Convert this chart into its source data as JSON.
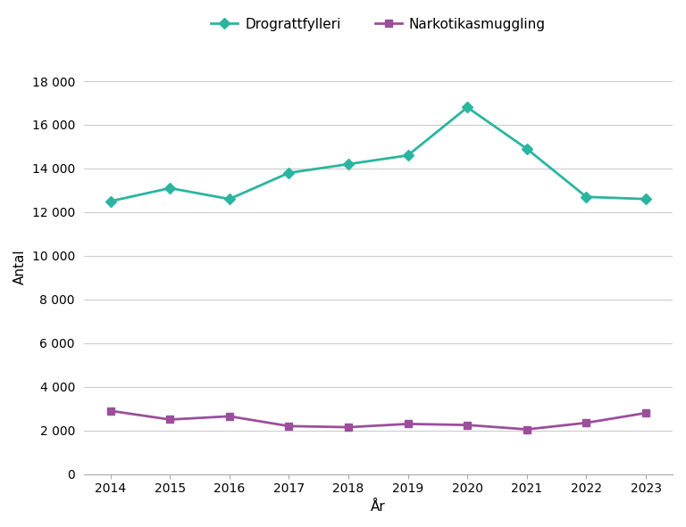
{
  "years": [
    2014,
    2015,
    2016,
    2017,
    2018,
    2019,
    2020,
    2021,
    2022,
    2023
  ],
  "drograttfylleri": [
    12500,
    13100,
    12600,
    13800,
    14200,
    14600,
    16800,
    14900,
    12700,
    12600
  ],
  "narkotikasmuggling": [
    2900,
    2500,
    2650,
    2200,
    2150,
    2300,
    2250,
    2050,
    2350,
    2800
  ],
  "drograttfylleri_color": "#2ab5a0",
  "narkotikasmuggling_color": "#9b4f9b",
  "background_color": "#ffffff",
  "grid_color": "#cccccc",
  "legend_drograttfylleri": "Drograttfylleri",
  "legend_narkotikasmuggling": "Narkotikasmuggling",
  "xlabel": "År",
  "ylabel": "Antal",
  "ylim": [
    0,
    19000
  ],
  "yticks": [
    0,
    2000,
    4000,
    6000,
    8000,
    10000,
    12000,
    14000,
    16000,
    18000
  ],
  "label_fontsize": 11,
  "tick_fontsize": 10,
  "legend_fontsize": 11
}
